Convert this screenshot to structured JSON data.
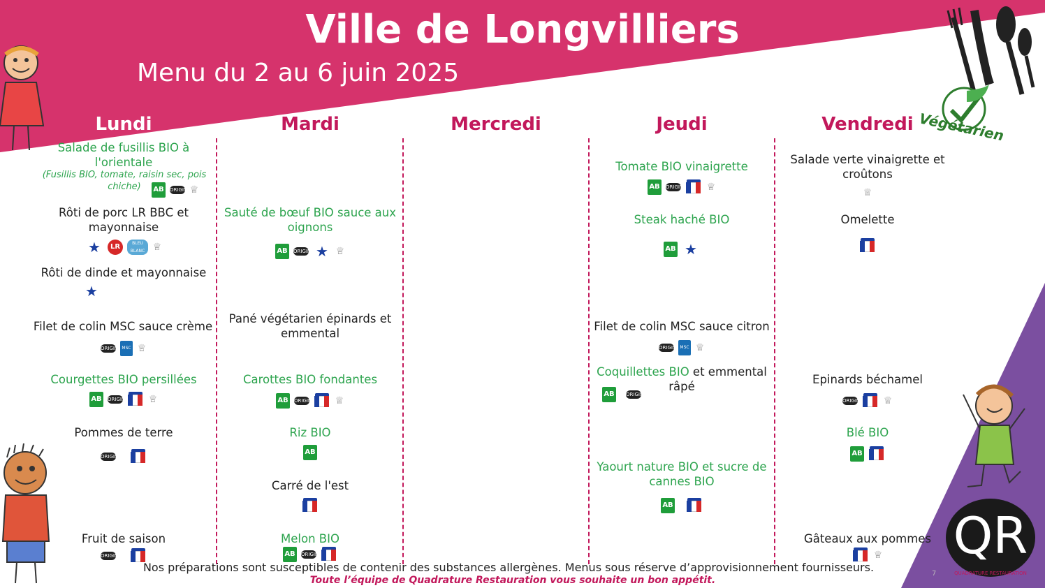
{
  "title": "Ville de Longvilliers",
  "subtitle": "Menu du 2 au 6 juin 2025",
  "days": [
    "Lundi",
    "Mardi",
    "Mercredi",
    "Jeudi",
    "Vendredi"
  ],
  "vegetarien_label": "Végétarien",
  "lundi": {
    "salade": "Salade de fusillis BIO à l'orientale",
    "salade_note": "(Fusillis BIO, tomate, raisin sec, pois chiche)",
    "roti_porc": "Rôti de porc LR BBC et mayonnaise",
    "roti_dinde": "Rôti de dinde et mayonnaise",
    "colin": "Filet de colin MSC sauce crème",
    "courgettes": "Courgettes BIO persillées",
    "pommes": "Pommes de terre",
    "fruit": "Fruit de saison"
  },
  "mardi": {
    "saute": "Sauté de bœuf BIO sauce aux oignons",
    "pane": "Pané végétarien épinards et emmental",
    "carottes": "Carottes BIO fondantes",
    "riz": "Riz BIO",
    "carre": "Carré de l'est",
    "melon": "Melon BIO"
  },
  "jeudi": {
    "tomate": "Tomate BIO vinaigrette",
    "steak": "Steak haché BIO",
    "colin": "Filet de colin MSC sauce citron",
    "coquillettes_bio": "Coquillettes BIO",
    "coquillettes_rest": " et emmental râpé",
    "yaourt": "Yaourt nature BIO et sucre de cannes BIO"
  },
  "vendredi": {
    "salade": "Salade verte vinaigrette et croûtons",
    "omelette": "Omelette",
    "epinards": "Epinards béchamel",
    "ble": "Blé BIO",
    "gateaux": "Gâteaux aux pommes"
  },
  "badges": {
    "bio": "AB",
    "origin": "ORIGINE",
    "lr": "LR",
    "bbc": "BLEU BLANC CŒUR",
    "msc": "MSC"
  },
  "footer": {
    "line1": "Nos préparations sont susceptibles de contenir des substances allergènes. Menus sous réserve d’approvisionnement fournisseurs.",
    "line2": "Toute l’équipe de Quadrature Restauration vous souhaite un bon appétit."
  },
  "page_number": "7",
  "logo": {
    "letters": "QR",
    "name": "QUADRATURE RESTAURATION"
  },
  "colors": {
    "header_pink": "#d6336c",
    "accent_magenta": "#c2185b",
    "bio_green": "#2da44e",
    "purple": "#7b4fa0"
  }
}
